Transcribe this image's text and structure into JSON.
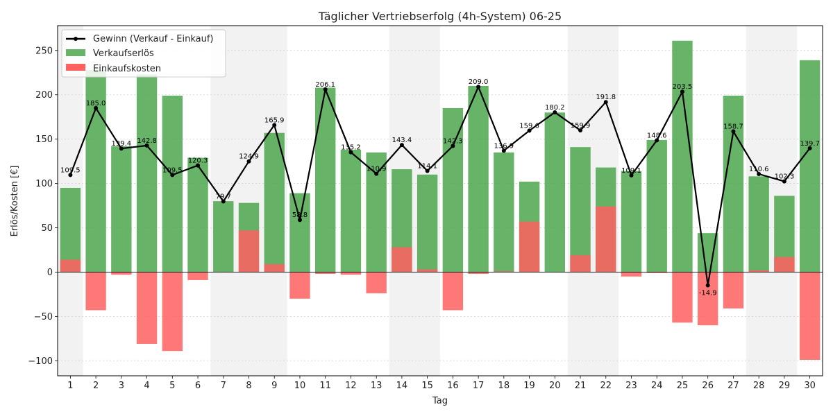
{
  "chart_data": {
    "type": "bar",
    "title": "Täglicher Vertriebserfolg (4h-System) 06-25",
    "xlabel": "Tag",
    "ylabel": "Erlös/Kosten [€]",
    "categories": [
      "1",
      "2",
      "3",
      "4",
      "5",
      "6",
      "7",
      "8",
      "9",
      "10",
      "11",
      "12",
      "13",
      "14",
      "15",
      "16",
      "17",
      "18",
      "19",
      "20",
      "21",
      "22",
      "23",
      "24",
      "25",
      "26",
      "27",
      "28",
      "29",
      "30"
    ],
    "ylim": [
      -117,
      278
    ],
    "yticks": [
      -100,
      -50,
      0,
      50,
      100,
      150,
      200,
      250
    ],
    "ytick_labels": [
      "−100",
      "−50",
      "0",
      "50",
      "100",
      "150",
      "200",
      "250"
    ],
    "grid": "y-dotted",
    "shaded_days": [
      "1",
      "7",
      "8",
      "9",
      "14",
      "15",
      "21",
      "22",
      "28",
      "29"
    ],
    "series": [
      {
        "name": "Verkaufserlös",
        "kind": "bar",
        "color": "#4ca64c",
        "values": [
          95,
          228,
          142,
          223,
          199,
          129,
          80,
          78,
          157,
          89,
          208,
          138,
          135,
          116,
          110,
          185,
          210,
          135,
          102,
          180,
          141,
          118,
          114,
          149,
          261,
          44,
          199,
          108,
          86,
          239
        ]
      },
      {
        "name": "Einkaufskosten",
        "kind": "bar",
        "color": "#ff6060",
        "values": [
          14,
          -43,
          -3,
          -81,
          -89,
          -9,
          0,
          47,
          9,
          -30,
          -2,
          -3,
          -24,
          28,
          3,
          -43,
          -2,
          1,
          57,
          0,
          19,
          74,
          -5,
          -1,
          -57,
          -60,
          -41,
          2,
          17,
          -99
        ]
      },
      {
        "name": "Gewinn (Verkauf - Einkauf)",
        "kind": "line",
        "color": "#000000",
        "values": [
          109.5,
          185.0,
          139.4,
          142.8,
          109.5,
          120.3,
          79.7,
          124.9,
          165.9,
          58.8,
          206.1,
          135.2,
          110.9,
          143.4,
          114.1,
          142.3,
          209.0,
          136.9,
          159.6,
          180.2,
          159.9,
          191.8,
          109.1,
          148.6,
          203.5,
          -14.9,
          158.7,
          110.6,
          102.3,
          139.7
        ],
        "labels": [
          "109.5",
          "185.0",
          "139.4",
          "142.8",
          "109.5",
          "120.3",
          "79.7",
          "124.9",
          "165.9",
          "58.8",
          "206.1",
          "135.2",
          "110.9",
          "143.4",
          "114.1",
          "142.3",
          "209.0",
          "136.9",
          "159.6",
          "180.2",
          "159.9",
          "191.8",
          "109.1",
          "148.6",
          "203.5",
          "-14.9",
          "158.7",
          "110.6",
          "102.3",
          "139.7"
        ]
      }
    ],
    "legend": {
      "placement": "top-left",
      "entries": [
        {
          "label": "Gewinn (Verkauf - Einkauf)",
          "kind": "line",
          "color": "#000000"
        },
        {
          "label": "Verkaufserlös",
          "kind": "bar",
          "color": "#4ca64c"
        },
        {
          "label": "Einkaufskosten",
          "kind": "bar",
          "color": "#ff6060"
        }
      ]
    }
  }
}
